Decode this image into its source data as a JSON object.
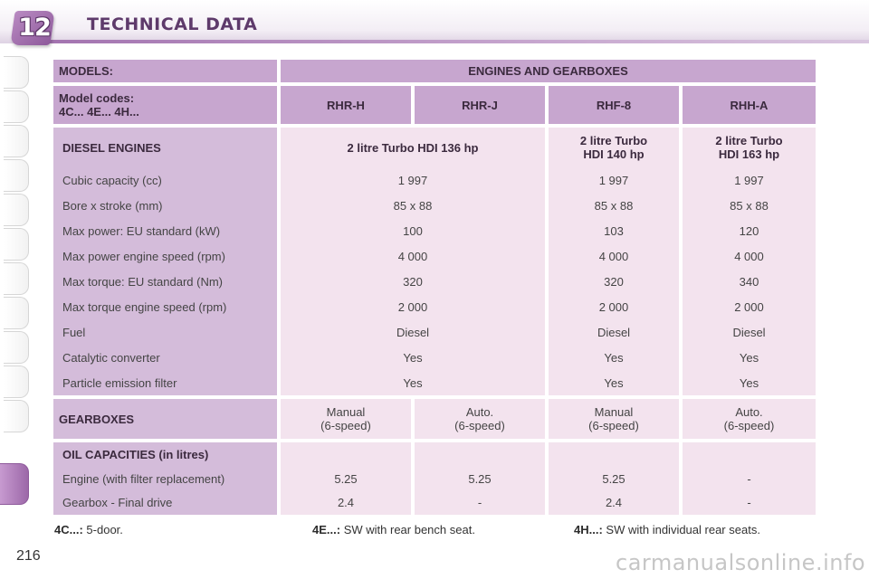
{
  "header": {
    "chapter_number": "12",
    "title": "TECHNICAL DATA"
  },
  "table": {
    "models_label": "MODELS:",
    "engines_header": "ENGINES AND GEARBOXES",
    "model_codes_label": "Model codes:",
    "model_codes_values": "4C... 4E... 4H...",
    "codes": [
      "RHR-H",
      "RHR-J",
      "RHF-8",
      "RHH-A"
    ],
    "diesel": {
      "label": "DIESEL ENGINES",
      "engine_1": "2 litre Turbo HDI 136 hp",
      "engine_2": "2 litre Turbo HDI 140 hp",
      "engine_3": "2 litre Turbo HDI 163 hp",
      "rows": [
        {
          "label": "Cubic capacity (cc)",
          "v1": "1 997",
          "v2": "1 997",
          "v3": "1 997"
        },
        {
          "label": "Bore x stroke (mm)",
          "v1": "85 x 88",
          "v2": "85 x 88",
          "v3": "85 x 88"
        },
        {
          "label": "Max power: EU standard (kW)",
          "v1": "100",
          "v2": "103",
          "v3": "120"
        },
        {
          "label": "Max power engine speed (rpm)",
          "v1": "4 000",
          "v2": "4 000",
          "v3": "4 000"
        },
        {
          "label": "Max torque: EU standard (Nm)",
          "v1": "320",
          "v2": "320",
          "v3": "340"
        },
        {
          "label": "Max torque engine speed (rpm)",
          "v1": "2 000",
          "v2": "2 000",
          "v3": "2 000"
        },
        {
          "label": "Fuel",
          "v1": "Diesel",
          "v2": "Diesel",
          "v3": "Diesel"
        },
        {
          "label": "Catalytic converter",
          "v1": "Yes",
          "v2": "Yes",
          "v3": "Yes"
        },
        {
          "label": "Particle emission filter",
          "v1": "Yes",
          "v2": "Yes",
          "v3": "Yes"
        }
      ]
    },
    "gearboxes": {
      "label": "GEARBOXES",
      "values": [
        {
          "type": "Manual",
          "speed": "(6-speed)"
        },
        {
          "type": "Auto.",
          "speed": "(6-speed)"
        },
        {
          "type": "Manual",
          "speed": "(6-speed)"
        },
        {
          "type": "Auto.",
          "speed": "(6-speed)"
        }
      ]
    },
    "oil": {
      "label": "OIL CAPACITIES (in litres)",
      "engine_label": "Engine (with filter replacement)",
      "engine_values": [
        "5.25",
        "5.25",
        "5.25",
        "-"
      ],
      "gearbox_label": "Gearbox - Final drive",
      "gearbox_values": [
        "2.4",
        "-",
        "2.4",
        "-"
      ]
    }
  },
  "footnotes": [
    {
      "code": "4C...:",
      "text": "5-door."
    },
    {
      "code": "4E...:",
      "text": "SW with rear bench seat."
    },
    {
      "code": "4H...:",
      "text": "SW with individual rear seats."
    }
  ],
  "page_number": "216",
  "watermark": "carmanualsonline.info",
  "colors": {
    "accent": "#9c68a8",
    "header_cell": "#c7a6cf",
    "data_cell": "#f3e3ee",
    "title": "#5e3a6b"
  }
}
